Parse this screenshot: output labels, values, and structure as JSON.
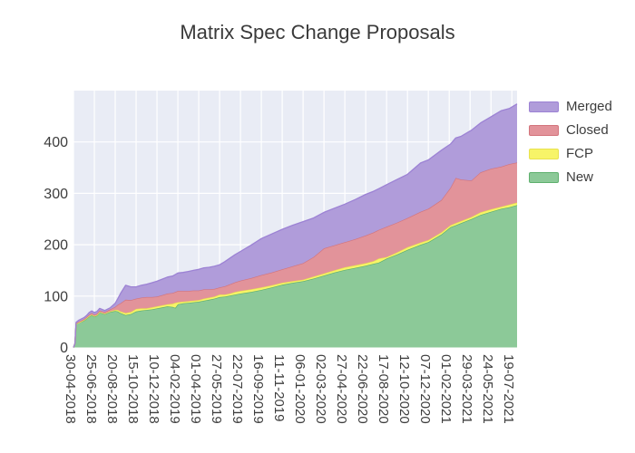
{
  "title": "Matrix Spec Change Proposals",
  "colors": {
    "plot_background": "#e9ecf5",
    "grid": "#ffffff",
    "title_text": "#3a3a3a",
    "tick_text": "#3d3d3d"
  },
  "legend": {
    "items": [
      {
        "label": "Merged",
        "fill": "#b09cda",
        "line": "#9c82d4"
      },
      {
        "label": "Closed",
        "fill": "#e2939a",
        "line": "#d3747c"
      },
      {
        "label": "FCP",
        "fill": "#f7f468",
        "line": "#e8e24e"
      },
      {
        "label": "New",
        "fill": "#8cc998",
        "line": "#5eb06e"
      }
    ]
  },
  "chart_data": {
    "type": "area",
    "stacked": true,
    "title": "Matrix Spec Change Proposals",
    "xlabel": "",
    "ylabel": "",
    "legend_position": "right",
    "grid": true,
    "x_unit": "weeks since first tick date",
    "x_tick_interval_weeks": 8,
    "xlim_weeks": [
      0,
      170
    ],
    "ylim": [
      0,
      500
    ],
    "y_ticks": [
      0,
      100,
      200,
      300,
      400
    ],
    "x_tick_labels": [
      "30-04-2018",
      "25-06-2018",
      "20-08-2018",
      "15-10-2018",
      "10-12-2018",
      "04-02-2019",
      "01-04-2019",
      "27-05-2019",
      "22-07-2019",
      "16-09-2019",
      "11-11-2019",
      "06-01-2020",
      "02-03-2020",
      "27-04-2020",
      "22-06-2020",
      "17-08-2020",
      "12-10-2020",
      "07-12-2020",
      "01-02-2021",
      "29-03-2021",
      "24-05-2021",
      "19-07-2021"
    ],
    "x_weeks": [
      0,
      0.6,
      1,
      2,
      4,
      5,
      6,
      7,
      8,
      9,
      10,
      12,
      14,
      16,
      17,
      18,
      20,
      22,
      24,
      26,
      28,
      30,
      32,
      34,
      36,
      38,
      39,
      40,
      42,
      44,
      46,
      48,
      50,
      52,
      54,
      56,
      58,
      60,
      62,
      64,
      68,
      72,
      76,
      80,
      84,
      88,
      92,
      96,
      100,
      104,
      108,
      112,
      115,
      117,
      120,
      124,
      128,
      133,
      136,
      141,
      144.5,
      146.5,
      148.5,
      152.5,
      156,
      160,
      164,
      167,
      170
    ],
    "series_order_bottom_to_top": [
      "New",
      "FCP",
      "Closed",
      "Merged"
    ],
    "series": [
      {
        "name": "New",
        "fill": "#8cc998",
        "line": "#5eb06e",
        "values": [
          0,
          8,
          46,
          48,
          52,
          56,
          60,
          63,
          60,
          62,
          68,
          65,
          69,
          71,
          70,
          67,
          63,
          65,
          70,
          72,
          73,
          74,
          76,
          78,
          80,
          79,
          77,
          84,
          86,
          87,
          88,
          89,
          91,
          93,
          95,
          98,
          99,
          101,
          103,
          105,
          108,
          112,
          117,
          122,
          126,
          129,
          134,
          140,
          146,
          151,
          155,
          159,
          163,
          165,
          173,
          181,
          190,
          200,
          205,
          220,
          234,
          238,
          242,
          250,
          258,
          264,
          270,
          273,
          277
        ]
      },
      {
        "name": "FCP",
        "fill": "#f7f468",
        "line": "#e8e24e",
        "values": [
          0,
          0,
          0,
          0,
          1,
          1,
          1,
          1,
          1,
          1,
          1,
          1,
          1,
          2,
          3,
          3,
          4,
          4,
          5,
          4,
          3,
          4,
          4,
          4,
          4,
          6,
          10,
          4,
          3,
          3,
          3,
          3,
          4,
          4,
          4,
          5,
          4,
          4,
          5,
          5,
          5,
          5,
          4,
          4,
          3,
          3,
          4,
          4,
          4,
          5,
          5,
          5,
          5,
          8,
          3,
          4,
          5,
          4,
          4,
          4,
          4,
          4,
          4,
          4,
          5,
          5,
          4,
          5,
          5
        ]
      },
      {
        "name": "Closed",
        "fill": "#e2939a",
        "line": "#d3747c",
        "values": [
          0,
          0,
          1,
          2,
          2,
          2,
          3,
          3,
          3,
          3,
          3,
          3,
          4,
          6,
          10,
          16,
          26,
          23,
          20,
          21,
          22,
          20,
          19,
          20,
          21,
          21,
          21,
          22,
          21,
          20,
          20,
          19,
          18,
          16,
          15,
          14,
          16,
          18,
          19,
          20,
          22,
          24,
          25,
          26,
          29,
          32,
          38,
          49,
          49,
          49,
          51,
          54,
          56,
          56,
          59,
          58,
          57,
          60,
          61,
          63,
          73,
          88,
          81,
          71,
          78,
          79,
          78,
          79,
          78
        ]
      },
      {
        "name": "Merged",
        "fill": "#b09cda",
        "line": "#9c82d4",
        "values": [
          0,
          0,
          2,
          3,
          3,
          3,
          4,
          4,
          4,
          4,
          4,
          3,
          3,
          7,
          12,
          19,
          28,
          26,
          23,
          24,
          25,
          28,
          30,
          31,
          32,
          33,
          34,
          35,
          36,
          38,
          39,
          41,
          42,
          43,
          44,
          44,
          48,
          51,
          54,
          57,
          64,
          71,
          75,
          78,
          80,
          81,
          76,
          70,
          72,
          74,
          77,
          80,
          80,
          80,
          82,
          84,
          85,
          95,
          95,
          97,
          85,
          78,
          84,
          98,
          96,
          101,
          109,
          108,
          114
        ]
      }
    ]
  }
}
